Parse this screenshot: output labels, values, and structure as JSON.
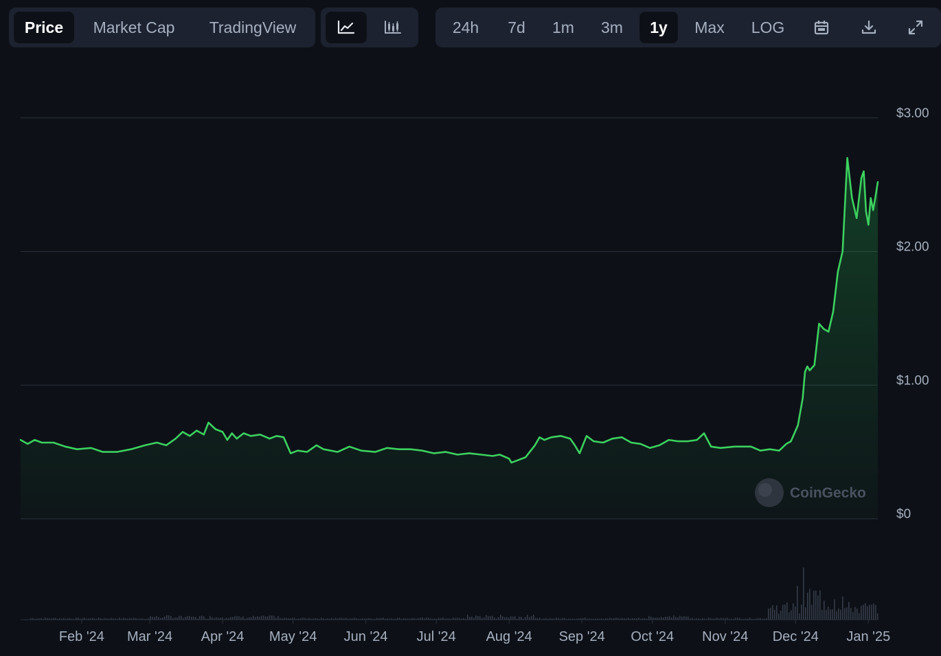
{
  "tabs": [
    {
      "label": "Price",
      "active": true
    },
    {
      "label": "Market Cap",
      "active": false
    },
    {
      "label": "TradingView",
      "active": false
    }
  ],
  "chart_types": [
    {
      "icon": "line-chart-icon",
      "active": true
    },
    {
      "icon": "candlestick-chart-icon",
      "active": false
    }
  ],
  "ranges": [
    {
      "label": "24h",
      "active": false
    },
    {
      "label": "7d",
      "active": false
    },
    {
      "label": "1m",
      "active": false
    },
    {
      "label": "3m",
      "active": false
    },
    {
      "label": "1y",
      "active": true
    },
    {
      "label": "Max",
      "active": false
    },
    {
      "label": "LOG",
      "active": false
    }
  ],
  "tools": [
    {
      "icon": "calendar-icon"
    },
    {
      "icon": "download-icon"
    },
    {
      "icon": "fullscreen-icon"
    }
  ],
  "watermark": "CoinGecko",
  "colors": {
    "line": "#3cd15f",
    "background": "#0d1117",
    "panel": "#1c2230",
    "grid": "#2a303b",
    "volume": "#353c49"
  },
  "chart_data": {
    "type": "area",
    "y_tick_labels": [
      "$0",
      "$1.00",
      "$2.00",
      "$3.00"
    ],
    "y_ticks": [
      0,
      1,
      2,
      3
    ],
    "ylim": [
      0,
      3.04
    ],
    "x_tick_labels": [
      "Feb '24",
      "Mar '24",
      "Apr '24",
      "May '24",
      "Jun '24",
      "Jul '24",
      "Aug '24",
      "Sep '24",
      "Oct '24",
      "Nov '24",
      "Dec '24",
      "Jan '25"
    ],
    "x_ticks": [
      "2024-02-01",
      "2024-03-01",
      "2024-04-01",
      "2024-05-01",
      "2024-06-01",
      "2024-07-01",
      "2024-08-01",
      "2024-09-01",
      "2024-10-01",
      "2024-11-01",
      "2024-12-01",
      "2025-01-01"
    ],
    "x_range": [
      "2024-01-06",
      "2025-01-05"
    ],
    "grid": true,
    "series": [
      {
        "points": [
          [
            "2024-01-06",
            0.59
          ],
          [
            "2024-01-09",
            0.56
          ],
          [
            "2024-01-12",
            0.59
          ],
          [
            "2024-01-15",
            0.57
          ],
          [
            "2024-01-20",
            0.57
          ],
          [
            "2024-01-25",
            0.54
          ],
          [
            "2024-01-30",
            0.52
          ],
          [
            "2024-02-05",
            0.53
          ],
          [
            "2024-02-10",
            0.5
          ],
          [
            "2024-02-16",
            0.5
          ],
          [
            "2024-02-22",
            0.52
          ],
          [
            "2024-02-28",
            0.55
          ],
          [
            "2024-03-04",
            0.57
          ],
          [
            "2024-03-08",
            0.55
          ],
          [
            "2024-03-12",
            0.6
          ],
          [
            "2024-03-15",
            0.65
          ],
          [
            "2024-03-18",
            0.62
          ],
          [
            "2024-03-21",
            0.66
          ],
          [
            "2024-03-24",
            0.63
          ],
          [
            "2024-03-26",
            0.72
          ],
          [
            "2024-03-29",
            0.67
          ],
          [
            "2024-04-01",
            0.65
          ],
          [
            "2024-04-03",
            0.59
          ],
          [
            "2024-04-05",
            0.64
          ],
          [
            "2024-04-07",
            0.6
          ],
          [
            "2024-04-10",
            0.64
          ],
          [
            "2024-04-13",
            0.62
          ],
          [
            "2024-04-17",
            0.63
          ],
          [
            "2024-04-21",
            0.6
          ],
          [
            "2024-04-24",
            0.62
          ],
          [
            "2024-04-27",
            0.61
          ],
          [
            "2024-04-30",
            0.49
          ],
          [
            "2024-05-03",
            0.51
          ],
          [
            "2024-05-07",
            0.5
          ],
          [
            "2024-05-11",
            0.55
          ],
          [
            "2024-05-14",
            0.52
          ],
          [
            "2024-05-20",
            0.5
          ],
          [
            "2024-05-25",
            0.54
          ],
          [
            "2024-05-30",
            0.51
          ],
          [
            "2024-06-05",
            0.5
          ],
          [
            "2024-06-10",
            0.53
          ],
          [
            "2024-06-15",
            0.52
          ],
          [
            "2024-06-20",
            0.52
          ],
          [
            "2024-06-25",
            0.51
          ],
          [
            "2024-06-30",
            0.49
          ],
          [
            "2024-07-05",
            0.5
          ],
          [
            "2024-07-10",
            0.48
          ],
          [
            "2024-07-15",
            0.49
          ],
          [
            "2024-07-20",
            0.48
          ],
          [
            "2024-07-25",
            0.47
          ],
          [
            "2024-07-28",
            0.48
          ],
          [
            "2024-08-01",
            0.45
          ],
          [
            "2024-08-02",
            0.42
          ],
          [
            "2024-08-05",
            0.44
          ],
          [
            "2024-08-08",
            0.46
          ],
          [
            "2024-08-12",
            0.55
          ],
          [
            "2024-08-14",
            0.61
          ],
          [
            "2024-08-16",
            0.59
          ],
          [
            "2024-08-19",
            0.61
          ],
          [
            "2024-08-23",
            0.62
          ],
          [
            "2024-08-27",
            0.6
          ],
          [
            "2024-08-29",
            0.55
          ],
          [
            "2024-08-31",
            0.49
          ],
          [
            "2024-09-03",
            0.62
          ],
          [
            "2024-09-06",
            0.58
          ],
          [
            "2024-09-10",
            0.57
          ],
          [
            "2024-09-14",
            0.6
          ],
          [
            "2024-09-18",
            0.61
          ],
          [
            "2024-09-22",
            0.57
          ],
          [
            "2024-09-26",
            0.56
          ],
          [
            "2024-09-30",
            0.53
          ],
          [
            "2024-10-04",
            0.55
          ],
          [
            "2024-10-08",
            0.59
          ],
          [
            "2024-10-12",
            0.58
          ],
          [
            "2024-10-16",
            0.58
          ],
          [
            "2024-10-20",
            0.59
          ],
          [
            "2024-10-23",
            0.64
          ],
          [
            "2024-10-26",
            0.54
          ],
          [
            "2024-10-30",
            0.53
          ],
          [
            "2024-11-05",
            0.54
          ],
          [
            "2024-11-12",
            0.54
          ],
          [
            "2024-11-16",
            0.51
          ],
          [
            "2024-11-20",
            0.52
          ],
          [
            "2024-11-24",
            0.51
          ],
          [
            "2024-11-27",
            0.56
          ],
          [
            "2024-11-29",
            0.58
          ],
          [
            "2024-12-02",
            0.7
          ],
          [
            "2024-12-04",
            0.9
          ],
          [
            "2024-12-05",
            1.1
          ],
          [
            "2024-12-06",
            1.14
          ],
          [
            "2024-12-07",
            1.11
          ],
          [
            "2024-12-09",
            1.15
          ],
          [
            "2024-12-11",
            1.46
          ],
          [
            "2024-12-13",
            1.42
          ],
          [
            "2024-12-15",
            1.4
          ],
          [
            "2024-12-17",
            1.55
          ],
          [
            "2024-12-19",
            1.85
          ],
          [
            "2024-12-21",
            2.0
          ],
          [
            "2024-12-23",
            2.7
          ],
          [
            "2024-12-25",
            2.4
          ],
          [
            "2024-12-27",
            2.25
          ],
          [
            "2024-12-29",
            2.55
          ],
          [
            "2024-12-30",
            2.6
          ],
          [
            "2024-12-31",
            2.3
          ],
          [
            "2025-01-01",
            2.2
          ],
          [
            "2025-01-02",
            2.4
          ],
          [
            "2025-01-03",
            2.31
          ],
          [
            "2025-01-04",
            2.41
          ],
          [
            "2025-01-05",
            2.52
          ]
        ]
      }
    ]
  }
}
